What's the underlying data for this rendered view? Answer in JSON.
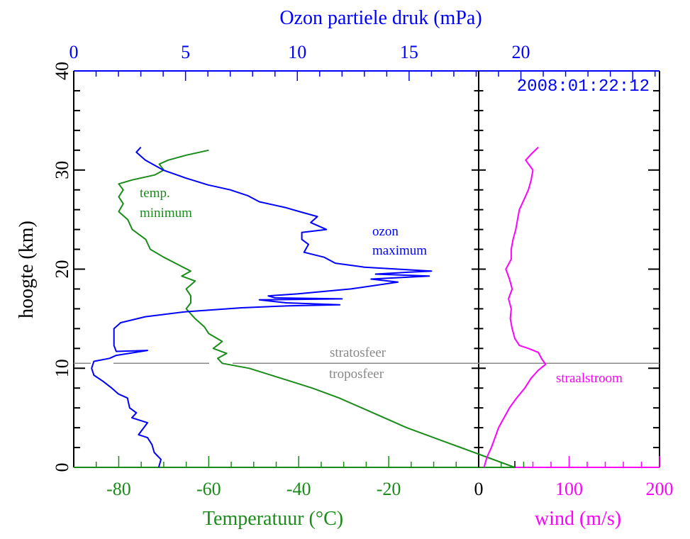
{
  "chart_data": {
    "type": "line",
    "title": "Ozon partiele druk (mPa)",
    "timestamp": "2008:01:22:12",
    "ylabel": "hoogte (km)",
    "ylim": [
      0,
      40
    ],
    "yticks": [
      "0",
      "10",
      "20",
      "30",
      "40"
    ],
    "x_axes": {
      "ozone": {
        "label": "Ozon partiele druk (mPa)",
        "range": [
          0,
          26.2
        ],
        "ticks": [
          "0",
          "5",
          "10",
          "15",
          "20"
        ],
        "color": "#0000ff"
      },
      "temperature": {
        "label": "Temperatuur (°C)",
        "range": [
          -90,
          0
        ],
        "ticks": [
          "-80",
          "-60",
          "-40",
          "-20",
          "0"
        ],
        "color": "#008c00"
      },
      "wind": {
        "label": "wind (m/s)",
        "range": [
          0,
          200
        ],
        "ticks": [
          "0",
          "100",
          "200"
        ],
        "color": "#ff00ff"
      }
    },
    "tropopause_km": 10.5,
    "series": [
      {
        "name": "temperatuur",
        "axis": "temperature",
        "color": "#1a8c1a",
        "points": [
          [
            8,
            0
          ],
          [
            2,
            1
          ],
          [
            -4,
            2
          ],
          [
            -10,
            3
          ],
          [
            -16,
            4
          ],
          [
            -21,
            5
          ],
          [
            -26,
            6
          ],
          [
            -31,
            7
          ],
          [
            -37,
            8
          ],
          [
            -44,
            9
          ],
          [
            -51,
            10
          ],
          [
            -57,
            10.5
          ],
          [
            -58,
            11
          ],
          [
            -56,
            11.5
          ],
          [
            -59,
            12
          ],
          [
            -57,
            12.7
          ],
          [
            -60,
            13.5
          ],
          [
            -61,
            14.2
          ],
          [
            -63,
            15
          ],
          [
            -65,
            16
          ],
          [
            -64,
            16.6
          ],
          [
            -64,
            17.3
          ],
          [
            -65,
            18
          ],
          [
            -63,
            18.8
          ],
          [
            -66,
            19.3
          ],
          [
            -64,
            19.8
          ],
          [
            -67,
            20.5
          ],
          [
            -70,
            21.2
          ],
          [
            -73,
            22
          ],
          [
            -74,
            23
          ],
          [
            -77,
            24
          ],
          [
            -78,
            25
          ],
          [
            -80,
            25.8
          ],
          [
            -79,
            26.6
          ],
          [
            -80,
            27.3
          ],
          [
            -79,
            28
          ],
          [
            -80,
            28.6
          ],
          [
            -77,
            29
          ],
          [
            -72,
            29.5
          ],
          [
            -70,
            30
          ],
          [
            -71,
            30.6
          ],
          [
            -69,
            31
          ],
          [
            -65,
            31.5
          ],
          [
            -60,
            32
          ]
        ]
      },
      {
        "name": "ozon",
        "axis": "ozone",
        "color": "#0000ff",
        "points": [
          [
            3.8,
            0
          ],
          [
            3.9,
            0.8
          ],
          [
            3.6,
            1.5
          ],
          [
            3.5,
            2.3
          ],
          [
            3.3,
            3
          ],
          [
            2.9,
            3.3
          ],
          [
            3.3,
            4.5
          ],
          [
            2.6,
            5
          ],
          [
            2.8,
            5.5
          ],
          [
            2.5,
            6
          ],
          [
            2.4,
            7
          ],
          [
            2.0,
            7.4
          ],
          [
            1.7,
            8
          ],
          [
            1.3,
            8.7
          ],
          [
            0.9,
            9.3
          ],
          [
            0.8,
            10
          ],
          [
            0.9,
            10.7
          ],
          [
            1.6,
            11
          ],
          [
            1.9,
            11.3
          ],
          [
            3.3,
            11.8
          ],
          [
            1.9,
            11.7
          ],
          [
            1.8,
            12.3
          ],
          [
            1.8,
            13
          ],
          [
            1.8,
            14
          ],
          [
            2.1,
            14.6
          ],
          [
            3.2,
            15.2
          ],
          [
            5.0,
            15.7
          ],
          [
            7.5,
            16.1
          ],
          [
            9.6,
            16.3
          ],
          [
            11.9,
            16.4
          ],
          [
            9.5,
            16.6
          ],
          [
            8.3,
            16.9
          ],
          [
            12.0,
            17
          ],
          [
            9.0,
            17.1
          ],
          [
            8.7,
            17.3
          ],
          [
            10.0,
            17.5
          ],
          [
            12.4,
            18
          ],
          [
            14.5,
            18.7
          ],
          [
            13.3,
            19.0
          ],
          [
            15.9,
            19.3
          ],
          [
            13.5,
            19.5
          ],
          [
            15.0,
            19.7
          ],
          [
            16.0,
            19.8
          ],
          [
            13.0,
            20.2
          ],
          [
            11.7,
            20.6
          ],
          [
            11.2,
            21.2
          ],
          [
            10.3,
            21.7
          ],
          [
            10.5,
            22.5
          ],
          [
            10.2,
            23
          ],
          [
            10.2,
            23.7
          ],
          [
            11.3,
            24
          ],
          [
            10.6,
            24.7
          ],
          [
            10.9,
            25.3
          ],
          [
            10.1,
            25.8
          ],
          [
            9.5,
            26.2
          ],
          [
            8.3,
            26.8
          ],
          [
            7.8,
            27.4
          ],
          [
            7.0,
            28
          ],
          [
            6.0,
            28.5
          ],
          [
            5.0,
            29.2
          ],
          [
            4.0,
            30
          ],
          [
            3.2,
            31
          ],
          [
            2.8,
            31.8
          ],
          [
            3.0,
            32.3
          ]
        ]
      },
      {
        "name": "wind",
        "axis": "wind",
        "color": "#ff00ff",
        "points": [
          [
            6,
            0
          ],
          [
            9,
            1
          ],
          [
            14,
            2
          ],
          [
            18,
            3
          ],
          [
            22,
            4
          ],
          [
            28,
            5
          ],
          [
            34,
            6
          ],
          [
            42,
            7
          ],
          [
            51,
            8
          ],
          [
            58,
            9
          ],
          [
            66,
            9.8
          ],
          [
            74,
            10.4
          ],
          [
            70,
            10.9
          ],
          [
            66,
            11.6
          ],
          [
            55,
            12
          ],
          [
            45,
            12.3
          ],
          [
            40,
            13
          ],
          [
            37,
            14
          ],
          [
            35,
            15
          ],
          [
            36,
            16
          ],
          [
            33,
            17
          ],
          [
            37,
            18
          ],
          [
            34,
            19
          ],
          [
            30,
            20
          ],
          [
            36,
            21
          ],
          [
            36,
            22
          ],
          [
            38,
            23
          ],
          [
            41,
            24
          ],
          [
            43,
            25
          ],
          [
            45,
            26
          ],
          [
            50,
            27
          ],
          [
            55,
            28
          ],
          [
            58,
            29
          ],
          [
            60,
            30
          ],
          [
            52,
            31
          ],
          [
            58,
            31.6
          ],
          [
            66,
            32.3
          ]
        ]
      }
    ],
    "annotations": [
      {
        "text": "temp.",
        "color": "#1a8c1a"
      },
      {
        "text": "minimum",
        "color": "#1a8c1a"
      },
      {
        "text": "ozon",
        "color": "#0000ff"
      },
      {
        "text": "maximum",
        "color": "#0000ff"
      },
      {
        "text": "stratosfeer",
        "color": "#888888"
      },
      {
        "text": "troposfeer",
        "color": "#888888"
      },
      {
        "text": "straalstroom",
        "color": "#ff00ff"
      }
    ]
  }
}
